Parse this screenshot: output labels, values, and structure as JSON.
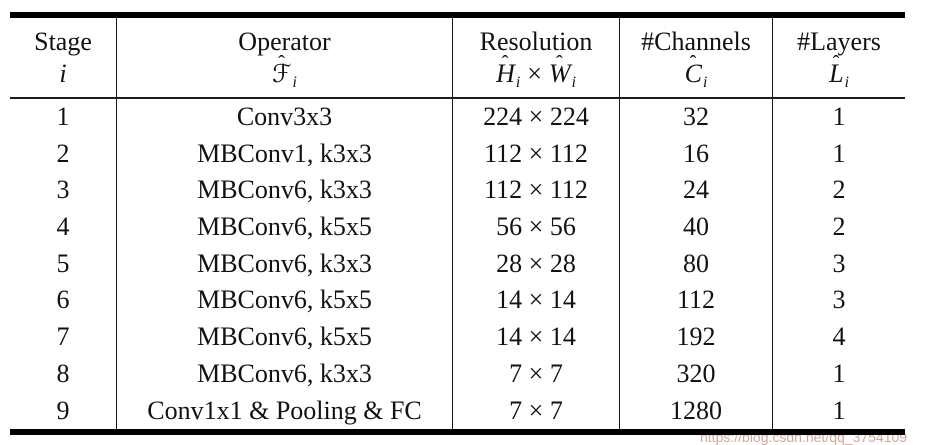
{
  "colors": {
    "text": "#121212",
    "rule": "#000000",
    "watermark": "#d0a79f"
  },
  "header": {
    "stage": {
      "line1": "Stage",
      "symbol": "i"
    },
    "operator": {
      "line1": "Operator",
      "sym": {
        "hat": "ˆ",
        "base": "ℱ",
        "sub": "i"
      }
    },
    "resolution": {
      "line1": "Resolution",
      "sym_h": {
        "hat": "ˆ",
        "base": "H",
        "sub": "i"
      },
      "times": "×",
      "sym_w": {
        "hat": "ˆ",
        "base": "W",
        "sub": "i"
      }
    },
    "channels": {
      "line1": "#Channels",
      "sym": {
        "hat": "ˆ",
        "base": "C",
        "sub": "i"
      }
    },
    "layers": {
      "line1": "#Layers",
      "sym": {
        "hat": "ˆ",
        "base": "L",
        "sub": "i"
      }
    }
  },
  "rows": [
    {
      "stage": "1",
      "operator": "Conv3x3",
      "resolution": "224 × 224",
      "channels": "32",
      "layers": "1"
    },
    {
      "stage": "2",
      "operator": "MBConv1, k3x3",
      "resolution": "112 × 112",
      "channels": "16",
      "layers": "1"
    },
    {
      "stage": "3",
      "operator": "MBConv6, k3x3",
      "resolution": "112 × 112",
      "channels": "24",
      "layers": "2"
    },
    {
      "stage": "4",
      "operator": "MBConv6, k5x5",
      "resolution": "56 × 56",
      "channels": "40",
      "layers": "2"
    },
    {
      "stage": "5",
      "operator": "MBConv6, k3x3",
      "resolution": "28 × 28",
      "channels": "80",
      "layers": "3"
    },
    {
      "stage": "6",
      "operator": "MBConv6, k5x5",
      "resolution": "14 × 14",
      "channels": "112",
      "layers": "3"
    },
    {
      "stage": "7",
      "operator": "MBConv6, k5x5",
      "resolution": "14 × 14",
      "channels": "192",
      "layers": "4"
    },
    {
      "stage": "8",
      "operator": "MBConv6, k3x3",
      "resolution": "7 × 7",
      "channels": "320",
      "layers": "1"
    },
    {
      "stage": "9",
      "operator": "Conv1x1 & Pooling & FC",
      "resolution": "7 × 7",
      "channels": "1280",
      "layers": "1"
    }
  ],
  "watermark": {
    "text": "https://blog.csdn.net/qq_3754109"
  }
}
